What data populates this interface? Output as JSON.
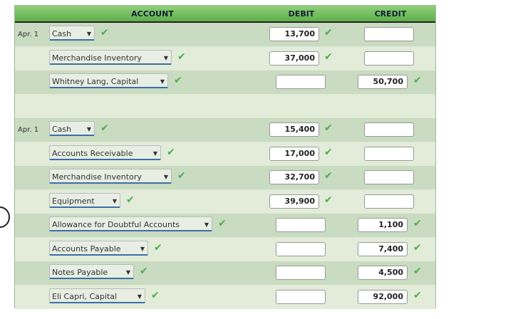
{
  "header": {
    "account": "ACCOUNT",
    "debit": "DEBIT",
    "credit": "CREDIT"
  },
  "check_color": "#4caf50",
  "rows": [
    {
      "date": "Apr. 1",
      "account": "Cash",
      "debit": "13,700",
      "credit": ""
    },
    {
      "date": "",
      "account": "Merchandise Inventory",
      "debit": "37,000",
      "credit": ""
    },
    {
      "date": "",
      "account": "Whitney Lang, Capital",
      "debit": "",
      "credit": "50,700"
    },
    null,
    {
      "date": "Apr. 1",
      "account": "Cash",
      "debit": "15,400",
      "credit": ""
    },
    {
      "date": "",
      "account": "Accounts Receivable",
      "debit": "17,000",
      "credit": ""
    },
    {
      "date": "",
      "account": "Merchandise Inventory",
      "debit": "32,700",
      "credit": ""
    },
    {
      "date": "",
      "account": "Equipment",
      "debit": "39,900",
      "credit": ""
    },
    {
      "date": "",
      "account": "Allowance for Doubtful Accounts",
      "debit": "",
      "credit": "1,100"
    },
    {
      "date": "",
      "account": "Accounts Payable",
      "debit": "",
      "credit": "7,400"
    },
    {
      "date": "",
      "account": "Notes Payable",
      "debit": "",
      "credit": "4,500"
    },
    {
      "date": "",
      "account": "Eli Capri, Capital",
      "debit": "",
      "credit": "92,000"
    }
  ]
}
